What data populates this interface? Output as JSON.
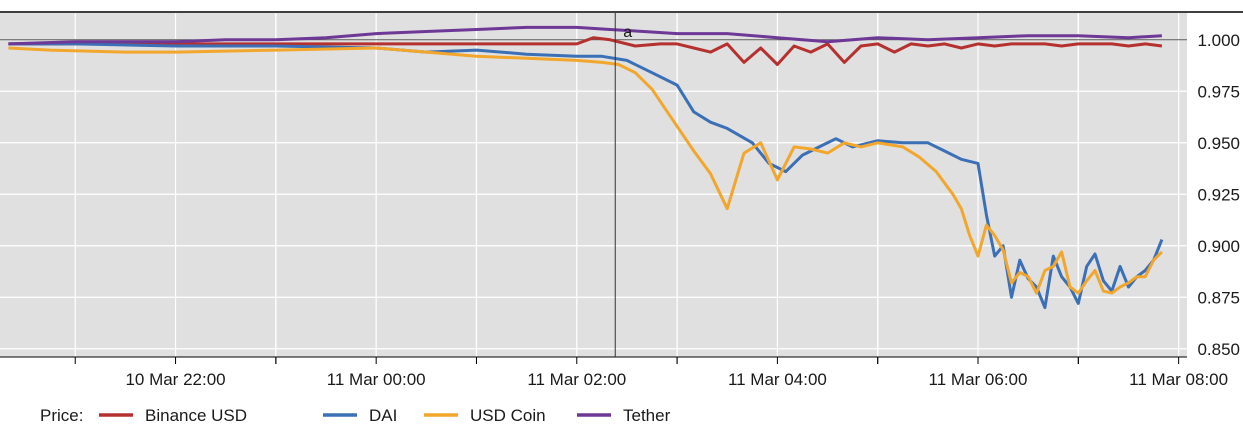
{
  "chart_data": {
    "type": "line",
    "title": "",
    "xlabel": "",
    "ylabel": "",
    "x_ticks": [
      "10 Mar 22:00",
      "11 Mar 00:00",
      "11 Mar 02:00",
      "11 Mar 04:00",
      "11 Mar 06:00",
      "11 Mar 08:00"
    ],
    "y_ticks": [
      "0.850",
      "0.875",
      "0.900",
      "0.925",
      "0.950",
      "0.975",
      "1.000"
    ],
    "xlim": [
      "10 Mar 20:15",
      "11 Mar 08:05"
    ],
    "ylim": [
      0.846,
      1.013
    ],
    "y_axis_side": "right",
    "grid": true,
    "background": "#e0e0e0",
    "legend": {
      "title": "Price:",
      "placement": "bottom-left"
    },
    "annotation": {
      "label": "a",
      "x": "11 Mar 02:23"
    },
    "series": [
      {
        "name": "Binance USD",
        "color": "#b5312f",
        "x": [
          "10 Mar 20:20",
          "10 Mar 21:00",
          "10 Mar 22:00",
          "10 Mar 23:00",
          "11 Mar 00:00",
          "11 Mar 01:00",
          "11 Mar 02:00",
          "11 Mar 02:10",
          "11 Mar 02:20",
          "11 Mar 02:35",
          "11 Mar 02:50",
          "11 Mar 03:00",
          "11 Mar 03:10",
          "11 Mar 03:20",
          "11 Mar 03:30",
          "11 Mar 03:40",
          "11 Mar 03:50",
          "11 Mar 04:00",
          "11 Mar 04:10",
          "11 Mar 04:20",
          "11 Mar 04:30",
          "11 Mar 04:40",
          "11 Mar 04:50",
          "11 Mar 05:00",
          "11 Mar 05:10",
          "11 Mar 05:20",
          "11 Mar 05:30",
          "11 Mar 05:40",
          "11 Mar 05:50",
          "11 Mar 06:00",
          "11 Mar 06:10",
          "11 Mar 06:20",
          "11 Mar 06:30",
          "11 Mar 06:40",
          "11 Mar 06:50",
          "11 Mar 07:00",
          "11 Mar 07:10",
          "11 Mar 07:20",
          "11 Mar 07:30",
          "11 Mar 07:40",
          "11 Mar 07:50"
        ],
        "values": [
          0.998,
          0.998,
          0.998,
          0.998,
          0.998,
          0.998,
          0.998,
          1.001,
          1.0,
          0.997,
          0.998,
          0.998,
          0.996,
          0.994,
          0.998,
          0.989,
          0.996,
          0.988,
          0.997,
          0.994,
          0.998,
          0.989,
          0.997,
          0.998,
          0.994,
          0.998,
          0.997,
          0.998,
          0.996,
          0.998,
          0.997,
          0.998,
          0.998,
          0.998,
          0.997,
          0.998,
          0.998,
          0.998,
          0.997,
          0.998,
          0.997
        ]
      },
      {
        "name": "DAI",
        "color": "#3b6fb6",
        "x": [
          "10 Mar 20:20",
          "10 Mar 21:00",
          "10 Mar 22:00",
          "10 Mar 23:00",
          "11 Mar 00:00",
          "11 Mar 00:30",
          "11 Mar 01:00",
          "11 Mar 01:30",
          "11 Mar 02:00",
          "11 Mar 02:15",
          "11 Mar 02:30",
          "11 Mar 02:45",
          "11 Mar 03:00",
          "11 Mar 03:10",
          "11 Mar 03:20",
          "11 Mar 03:30",
          "11 Mar 03:45",
          "11 Mar 03:55",
          "11 Mar 04:05",
          "11 Mar 04:15",
          "11 Mar 04:25",
          "11 Mar 04:35",
          "11 Mar 04:45",
          "11 Mar 05:00",
          "11 Mar 05:15",
          "11 Mar 05:30",
          "11 Mar 05:40",
          "11 Mar 05:50",
          "11 Mar 06:00",
          "11 Mar 06:05",
          "11 Mar 06:10",
          "11 Mar 06:15",
          "11 Mar 06:20",
          "11 Mar 06:25",
          "11 Mar 06:30",
          "11 Mar 06:35",
          "11 Mar 06:40",
          "11 Mar 06:45",
          "11 Mar 06:50",
          "11 Mar 06:55",
          "11 Mar 07:00",
          "11 Mar 07:05",
          "11 Mar 07:10",
          "11 Mar 07:15",
          "11 Mar 07:20",
          "11 Mar 07:25",
          "11 Mar 07:30",
          "11 Mar 07:35",
          "11 Mar 07:40",
          "11 Mar 07:45",
          "11 Mar 07:50"
        ],
        "values": [
          0.998,
          0.998,
          0.997,
          0.997,
          0.996,
          0.994,
          0.995,
          0.993,
          0.992,
          0.992,
          0.99,
          0.984,
          0.978,
          0.965,
          0.96,
          0.957,
          0.95,
          0.94,
          0.936,
          0.944,
          0.948,
          0.952,
          0.948,
          0.951,
          0.95,
          0.95,
          0.946,
          0.942,
          0.94,
          0.915,
          0.895,
          0.9,
          0.875,
          0.893,
          0.884,
          0.88,
          0.87,
          0.895,
          0.885,
          0.88,
          0.872,
          0.89,
          0.896,
          0.883,
          0.878,
          0.89,
          0.88,
          0.885,
          0.888,
          0.893,
          0.903
        ]
      },
      {
        "name": "USD Coin",
        "color": "#f2a72c",
        "x": [
          "10 Mar 20:20",
          "10 Mar 20:45",
          "10 Mar 21:30",
          "10 Mar 22:00",
          "10 Mar 23:00",
          "11 Mar 00:00",
          "11 Mar 00:30",
          "11 Mar 01:00",
          "11 Mar 01:30",
          "11 Mar 02:00",
          "11 Mar 02:15",
          "11 Mar 02:25",
          "11 Mar 02:35",
          "11 Mar 02:45",
          "11 Mar 03:00",
          "11 Mar 03:10",
          "11 Mar 03:20",
          "11 Mar 03:30",
          "11 Mar 03:40",
          "11 Mar 03:50",
          "11 Mar 04:00",
          "11 Mar 04:10",
          "11 Mar 04:20",
          "11 Mar 04:30",
          "11 Mar 04:40",
          "11 Mar 04:50",
          "11 Mar 05:00",
          "11 Mar 05:15",
          "11 Mar 05:25",
          "11 Mar 05:35",
          "11 Mar 05:45",
          "11 Mar 05:50",
          "11 Mar 05:55",
          "11 Mar 06:00",
          "11 Mar 06:05",
          "11 Mar 06:10",
          "11 Mar 06:15",
          "11 Mar 06:20",
          "11 Mar 06:25",
          "11 Mar 06:30",
          "11 Mar 06:35",
          "11 Mar 06:40",
          "11 Mar 06:45",
          "11 Mar 06:50",
          "11 Mar 06:55",
          "11 Mar 07:00",
          "11 Mar 07:05",
          "11 Mar 07:10",
          "11 Mar 07:15",
          "11 Mar 07:20",
          "11 Mar 07:25",
          "11 Mar 07:30",
          "11 Mar 07:35",
          "11 Mar 07:40",
          "11 Mar 07:45",
          "11 Mar 07:50"
        ],
        "values": [
          0.996,
          0.995,
          0.994,
          0.994,
          0.995,
          0.996,
          0.994,
          0.992,
          0.991,
          0.99,
          0.989,
          0.988,
          0.984,
          0.976,
          0.958,
          0.946,
          0.935,
          0.918,
          0.945,
          0.95,
          0.932,
          0.948,
          0.947,
          0.945,
          0.95,
          0.948,
          0.95,
          0.948,
          0.943,
          0.936,
          0.925,
          0.918,
          0.905,
          0.895,
          0.91,
          0.905,
          0.898,
          0.882,
          0.887,
          0.885,
          0.877,
          0.888,
          0.89,
          0.897,
          0.88,
          0.877,
          0.883,
          0.888,
          0.878,
          0.877,
          0.88,
          0.882,
          0.885,
          0.885,
          0.893,
          0.897
        ]
      },
      {
        "name": "Tether",
        "color": "#6e3896",
        "x": [
          "10 Mar 20:20",
          "10 Mar 21:00",
          "10 Mar 22:00",
          "10 Mar 22:30",
          "10 Mar 23:00",
          "10 Mar 23:30",
          "11 Mar 00:00",
          "11 Mar 00:30",
          "11 Mar 01:00",
          "11 Mar 01:30",
          "11 Mar 02:00",
          "11 Mar 02:20",
          "11 Mar 02:40",
          "11 Mar 03:00",
          "11 Mar 03:30",
          "11 Mar 04:00",
          "11 Mar 04:30",
          "11 Mar 05:00",
          "11 Mar 05:30",
          "11 Mar 06:00",
          "11 Mar 06:30",
          "11 Mar 07:00",
          "11 Mar 07:30",
          "11 Mar 07:50"
        ],
        "values": [
          0.998,
          0.999,
          0.999,
          1.0,
          1.0,
          1.001,
          1.003,
          1.004,
          1.005,
          1.006,
          1.006,
          1.005,
          1.004,
          1.003,
          1.003,
          1.001,
          0.999,
          1.001,
          1.0,
          1.001,
          1.002,
          1.002,
          1.001,
          1.002
        ]
      }
    ]
  }
}
